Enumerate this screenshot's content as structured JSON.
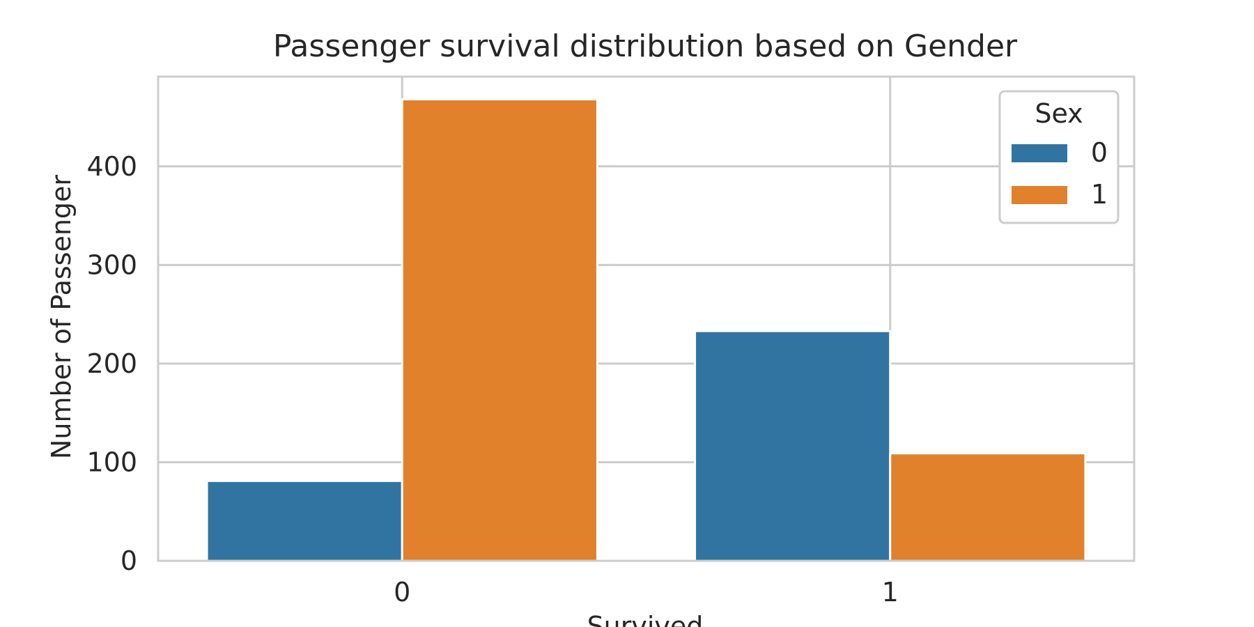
{
  "chart_data": {
    "type": "bar",
    "title": "Passenger survival distribution based on Gender",
    "xlabel": "Survived",
    "ylabel": "Number of Passenger",
    "categories": [
      "0",
      "1"
    ],
    "series": [
      {
        "name": "0",
        "values": [
          81,
          233
        ]
      },
      {
        "name": "1",
        "values": [
          468,
          109
        ]
      }
    ],
    "ylim": [
      0,
      491
    ],
    "yticks": [
      0,
      100,
      200,
      300,
      400
    ],
    "legend": {
      "title": "Sex",
      "placement": "top-right"
    },
    "grid": true,
    "colors": [
      "#3274a1",
      "#e1812c"
    ],
    "grid_color": "#cccccc",
    "text_color": "#262626"
  }
}
